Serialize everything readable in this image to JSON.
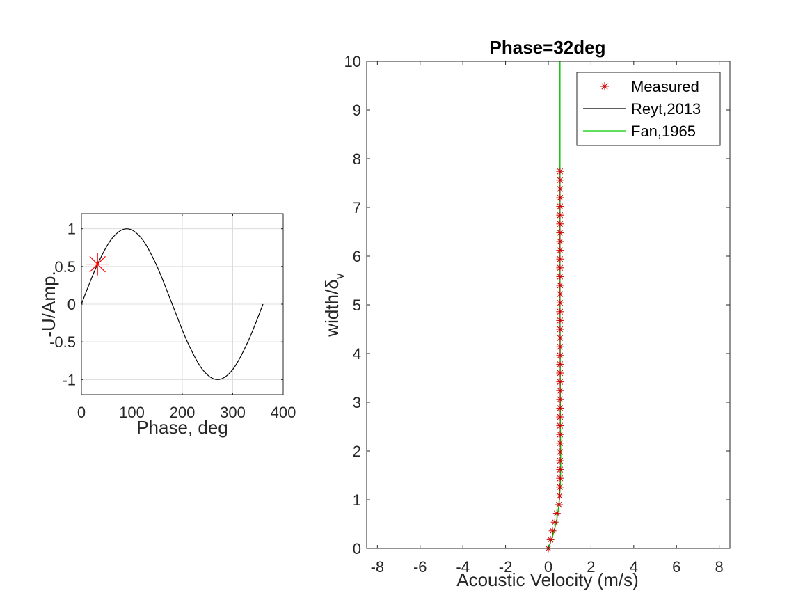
{
  "chart_data": [
    {
      "type": "line",
      "title": "",
      "xlabel": "Phase, deg",
      "ylabel": "-U/Amp.",
      "xlim": [
        0,
        400
      ],
      "ylim": [
        -1.2,
        1.2
      ],
      "xticks": [
        0,
        100,
        200,
        300,
        400
      ],
      "yticks": [
        -1,
        -0.5,
        0,
        0.5,
        1
      ],
      "grid": true,
      "series": [
        {
          "line_color": "#000000",
          "x": [
            0,
            30,
            60,
            90,
            120,
            150,
            180,
            210,
            240,
            270,
            300,
            330,
            360
          ],
          "y": [
            0,
            0.5,
            0.866,
            1,
            0.866,
            0.5,
            0,
            -0.5,
            -0.866,
            -1,
            -0.866,
            -0.5,
            0
          ]
        }
      ],
      "marker": {
        "x": 32,
        "y": 0.53,
        "color": "#ff0000",
        "symbol": "asterisk"
      }
    },
    {
      "type": "line",
      "title": "Phase=32deg",
      "xlabel": "Acoustic Velocity (m/s)",
      "ylabel": "width/δ",
      "ylabel_sub": "v",
      "xlim": [
        -8.5,
        8.5
      ],
      "ylim": [
        0,
        10
      ],
      "xticks": [
        -8,
        -6,
        -4,
        -2,
        0,
        2,
        4,
        6,
        8
      ],
      "yticks": [
        0,
        1,
        2,
        3,
        4,
        5,
        6,
        7,
        8,
        9,
        10
      ],
      "grid": false,
      "legend": "top-right",
      "series": [
        {
          "name": "Measured",
          "marker_color": "#cc0000",
          "x": [
            0.0,
            0.1,
            0.2,
            0.3,
            0.4,
            0.5,
            0.53,
            0.54,
            0.55,
            0.55,
            0.55,
            0.55,
            0.55,
            0.55,
            0.55,
            0.55,
            0.55,
            0.55,
            0.55,
            0.55,
            0.55,
            0.55,
            0.55,
            0.55,
            0.55,
            0.55,
            0.55,
            0.55,
            0.55,
            0.55,
            0.55,
            0.55,
            0.55,
            0.55,
            0.55,
            0.55,
            0.55,
            0.55,
            0.55,
            0.55,
            0.55,
            0.55,
            0.55,
            0.55
          ],
          "y": [
            0.0,
            0.18,
            0.36,
            0.54,
            0.72,
            0.9,
            1.08,
            1.26,
            1.44,
            1.62,
            1.8,
            1.98,
            2.16,
            2.34,
            2.52,
            2.7,
            2.88,
            3.06,
            3.24,
            3.42,
            3.6,
            3.78,
            3.96,
            4.14,
            4.32,
            4.5,
            4.68,
            4.86,
            5.04,
            5.22,
            5.4,
            5.58,
            5.76,
            5.94,
            6.12,
            6.3,
            6.48,
            6.66,
            6.84,
            7.02,
            7.2,
            7.38,
            7.56,
            7.74
          ]
        },
        {
          "name": "Reyt,2013",
          "line_color": "#000000",
          "x": [
            0.0,
            0.2,
            0.38,
            0.5,
            0.56,
            0.58,
            0.57,
            0.56,
            0.55,
            0.55,
            0.55
          ],
          "y": [
            0.0,
            0.25,
            0.55,
            0.9,
            1.3,
            1.7,
            2.2,
            3.0,
            5.0,
            8.0,
            10.0
          ]
        },
        {
          "name": "Fan,1965",
          "line_color": "#00cc00",
          "x": [
            0.0,
            0.2,
            0.38,
            0.5,
            0.56,
            0.58,
            0.57,
            0.56,
            0.55,
            0.55,
            0.55
          ],
          "y": [
            0.0,
            0.25,
            0.55,
            0.9,
            1.3,
            1.7,
            2.2,
            3.0,
            5.0,
            8.0,
            10.0
          ]
        }
      ]
    }
  ]
}
